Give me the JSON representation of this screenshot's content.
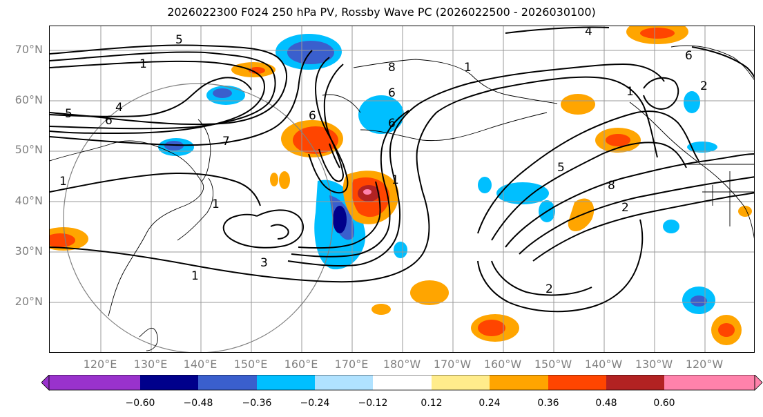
{
  "title": "2026022300 F024 250 hPa PV, Rossby Wave PC (2026022500 - 2026030100)",
  "latitude_labels": [
    "70°N",
    "60°N",
    "50°N",
    "40°N",
    "30°N",
    "20°N"
  ],
  "longitude_labels": [
    "120°E",
    "130°E",
    "140°E",
    "150°E",
    "160°E",
    "170°E",
    "180°W",
    "170°W",
    "160°W",
    "150°W",
    "140°W",
    "130°W",
    "120°W"
  ],
  "contour_labels": [
    "5",
    "1",
    "5",
    "4",
    "6",
    "7",
    "1",
    "1",
    "1",
    "3",
    "1",
    "8",
    "6",
    "6",
    "1",
    "8",
    "2",
    "5",
    "2",
    "6",
    "1",
    "4",
    "6",
    "2"
  ],
  "colorbar": {
    "tick_labels": [
      "−0.60",
      "−0.48",
      "−0.36",
      "−0.24",
      "−0.12",
      "0.12",
      "0.24",
      "0.36",
      "0.48",
      "0.60"
    ],
    "colors": [
      "#9932cc",
      "#00008b",
      "#3a5fcd",
      "#00bfff",
      "#b0e2ff",
      "#ffffff",
      "#ffec8b",
      "#ffa500",
      "#ff4500",
      "#b22222",
      "#ff82ab"
    ]
  }
}
